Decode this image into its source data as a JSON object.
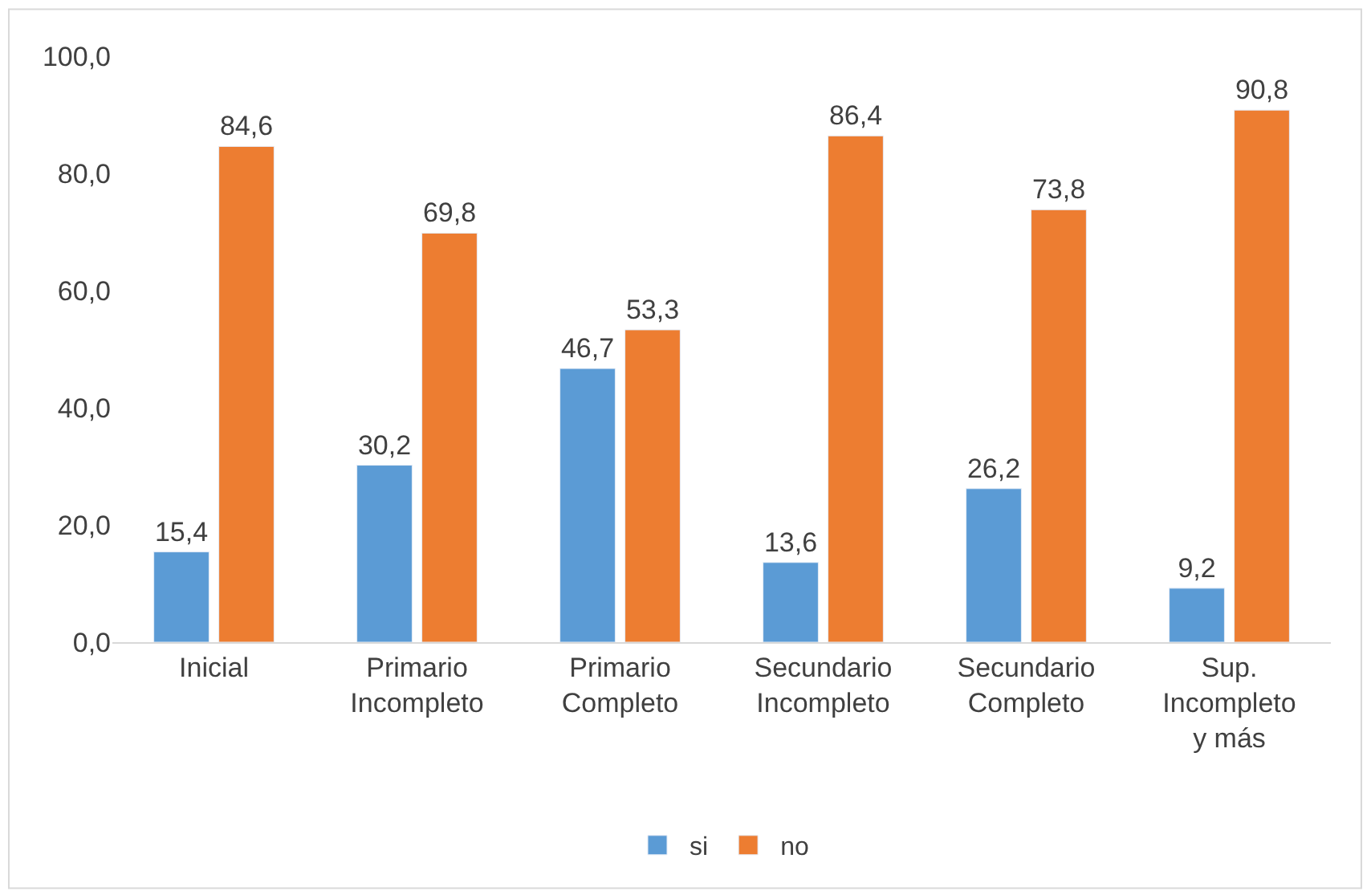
{
  "chart_data": {
    "type": "bar",
    "categories": [
      "Inicial",
      "Primario Incompleto",
      "Primario Completo",
      "Secundario Incompleto",
      "Secundario Completo",
      "Sup. Incompleto y más"
    ],
    "series": [
      {
        "name": "si",
        "color": "#5b9bd5",
        "values": [
          15.4,
          30.2,
          46.7,
          13.6,
          26.2,
          9.2
        ],
        "value_labels": [
          "15,4",
          "30,2",
          "46,7",
          "13,6",
          "26,2",
          "9,2"
        ]
      },
      {
        "name": "no",
        "color": "#ed7d31",
        "values": [
          84.6,
          69.8,
          53.3,
          86.4,
          73.8,
          90.8
        ],
        "value_labels": [
          "84,6",
          "69,8",
          "53,3",
          "86,4",
          "73,8",
          "90,8"
        ]
      }
    ],
    "ylim": [
      0,
      100
    ],
    "yticks": [
      {
        "value": 0,
        "label": "0,0"
      },
      {
        "value": 20,
        "label": "20,0"
      },
      {
        "value": 40,
        "label": "40,0"
      },
      {
        "value": 60,
        "label": "60,0"
      },
      {
        "value": 80,
        "label": "80,0"
      },
      {
        "value": 100,
        "label": "100,0"
      }
    ],
    "grid": false,
    "legend": "bottom"
  }
}
